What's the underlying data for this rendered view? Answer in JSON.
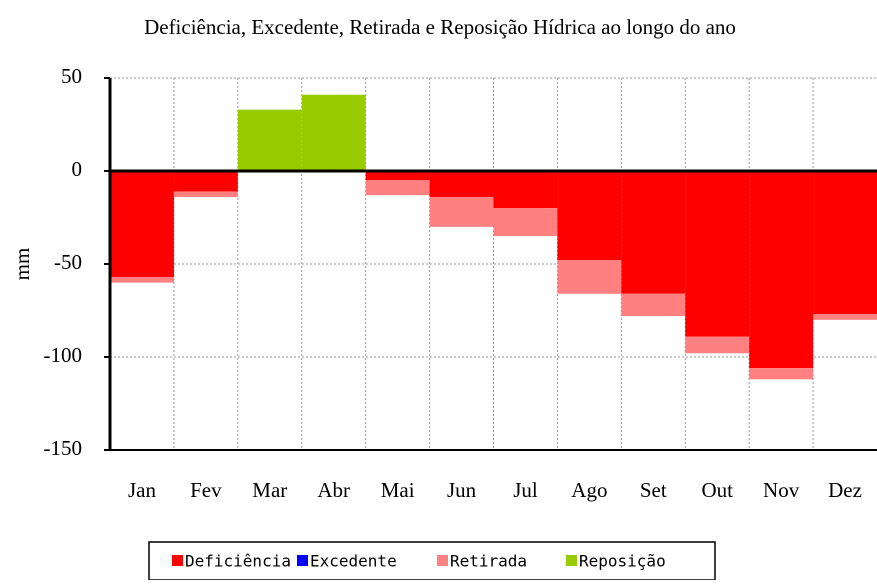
{
  "chart_data": {
    "type": "bar",
    "stacked": true,
    "title": "Deficiência, Excedente, Retirada e Reposição Hídrica ao longo do ano",
    "y_label": "mm",
    "categories": [
      "Jan",
      "Fev",
      "Mar",
      "Abr",
      "Mai",
      "Jun",
      "Jul",
      "Ago",
      "Set",
      "Out",
      "Nov",
      "Dez"
    ],
    "series": [
      {
        "name": "Deficiência",
        "color": "#ff0000",
        "values": [
          -57,
          -11,
          0,
          0,
          -5,
          -14,
          -20,
          -48,
          -66,
          -89,
          -106,
          -77
        ]
      },
      {
        "name": "Excedente",
        "color": "#0000ff",
        "values": [
          0,
          0,
          0,
          0,
          0,
          0,
          0,
          0,
          0,
          0,
          0,
          0
        ]
      },
      {
        "name": "Retirada",
        "color": "#ff8080",
        "values": [
          -3,
          -3,
          0,
          0,
          -8,
          -16,
          -15,
          -18,
          -12,
          -9,
          -6,
          -3
        ]
      },
      {
        "name": "Reposição",
        "color": "#99cc00",
        "values": [
          0,
          0,
          33,
          41,
          0,
          0,
          0,
          0,
          0,
          0,
          0,
          0
        ]
      }
    ],
    "ylim": [
      -150,
      50
    ],
    "yticks": [
      -150,
      -100,
      -50,
      0,
      50
    ],
    "grid": true,
    "legend": "bottom"
  }
}
